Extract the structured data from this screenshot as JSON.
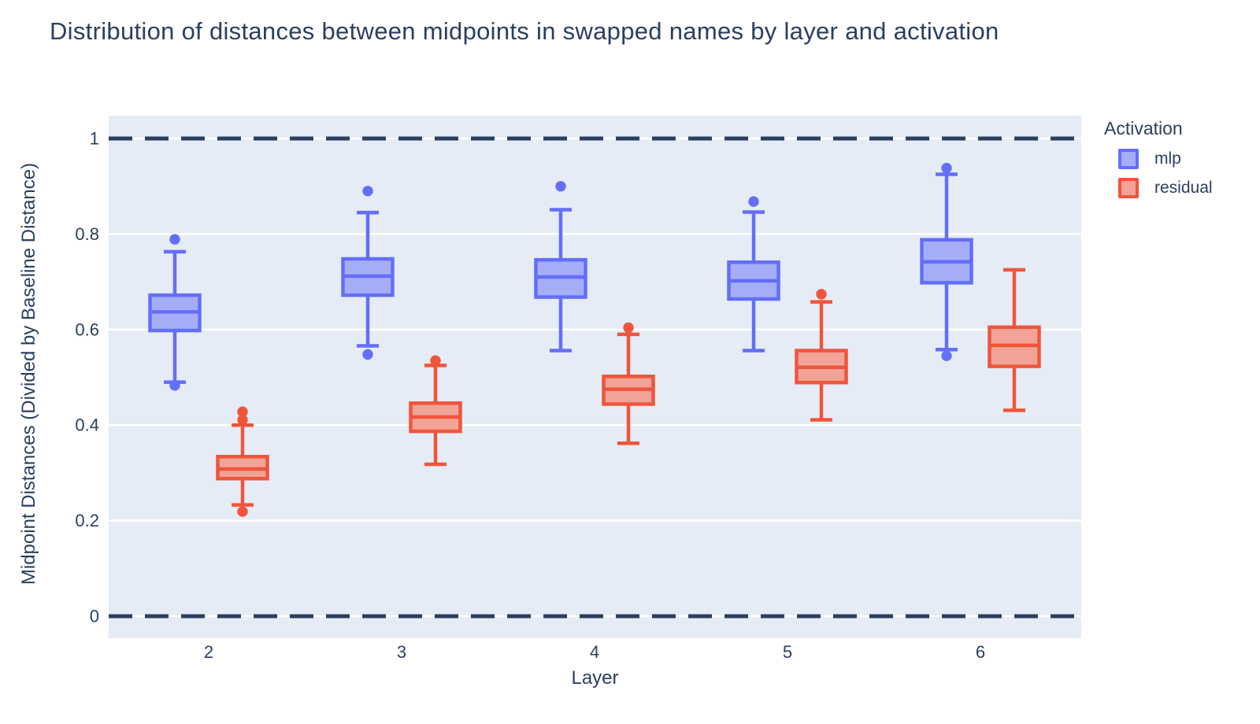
{
  "title": "Distribution of distances between midpoints in swapped names by layer and activation",
  "colors": {
    "mlp_line": "#636EFA",
    "mlp_fill": "#A5ADF7",
    "residual_line": "#EF553B",
    "residual_fill": "#F0A396",
    "plot_background": "#E5ECF6",
    "gridline": "#FFFFFF",
    "reference_line": "#2A3F5F",
    "text": "#2A3F5F"
  },
  "legend": {
    "title": "Activation",
    "items": [
      {
        "label": "mlp",
        "line": "#636EFA",
        "fill": "#A5ADF7"
      },
      {
        "label": "residual",
        "line": "#EF553B",
        "fill": "#F0A396"
      }
    ]
  },
  "chart_data": {
    "type": "box",
    "title": "Distribution of distances between midpoints in swapped names by layer and activation",
    "xlabel": "Layer",
    "ylabel": "Midpoint Distances (Divided by Baseline Distance)",
    "categories": [
      "2",
      "3",
      "4",
      "5",
      "6"
    ],
    "yticks": [
      0,
      0.2,
      0.4,
      0.6,
      0.8,
      1
    ],
    "ytick_labels": [
      "0",
      "0.2",
      "0.4",
      "0.6",
      "0.8",
      "1"
    ],
    "ylim": [
      -0.046,
      1.048
    ],
    "grid": true,
    "legend_position": "right",
    "reference_lines": [
      0,
      1
    ],
    "series": [
      {
        "name": "mlp",
        "line_color": "#636EFA",
        "fill_color": "#A5ADF7",
        "boxes": [
          {
            "category": "2",
            "whisker_low": 0.49,
            "q1": 0.598,
            "median": 0.637,
            "q3": 0.672,
            "whisker_high": 0.763,
            "outliers_high": [
              0.789
            ],
            "outliers_low": [
              0.483
            ]
          },
          {
            "category": "3",
            "whisker_low": 0.566,
            "q1": 0.672,
            "median": 0.712,
            "q3": 0.748,
            "whisker_high": 0.845,
            "outliers_high": [
              0.89
            ],
            "outliers_low": [
              0.548
            ]
          },
          {
            "category": "4",
            "whisker_low": 0.556,
            "q1": 0.668,
            "median": 0.71,
            "q3": 0.746,
            "whisker_high": 0.851,
            "outliers_high": [
              0.9
            ],
            "outliers_low": []
          },
          {
            "category": "5",
            "whisker_low": 0.556,
            "q1": 0.664,
            "median": 0.702,
            "q3": 0.741,
            "whisker_high": 0.846,
            "outliers_high": [
              0.868
            ],
            "outliers_low": []
          },
          {
            "category": "6",
            "whisker_low": 0.558,
            "q1": 0.698,
            "median": 0.742,
            "q3": 0.788,
            "whisker_high": 0.925,
            "outliers_high": [
              0.938
            ],
            "outliers_low": [
              0.545
            ]
          }
        ]
      },
      {
        "name": "residual",
        "line_color": "#EF553B",
        "fill_color": "#F0A396",
        "boxes": [
          {
            "category": "2",
            "whisker_low": 0.233,
            "q1": 0.288,
            "median": 0.308,
            "q3": 0.334,
            "whisker_high": 0.4,
            "outliers_high": [
              0.428,
              0.411
            ],
            "outliers_low": [
              0.219
            ]
          },
          {
            "category": "3",
            "whisker_low": 0.318,
            "q1": 0.387,
            "median": 0.417,
            "q3": 0.446,
            "whisker_high": 0.525,
            "outliers_high": [
              0.535
            ],
            "outliers_low": []
          },
          {
            "category": "4",
            "whisker_low": 0.362,
            "q1": 0.444,
            "median": 0.475,
            "q3": 0.502,
            "whisker_high": 0.59,
            "outliers_high": [
              0.604
            ],
            "outliers_low": []
          },
          {
            "category": "5",
            "whisker_low": 0.411,
            "q1": 0.489,
            "median": 0.521,
            "q3": 0.556,
            "whisker_high": 0.658,
            "outliers_high": [
              0.674
            ],
            "outliers_low": []
          },
          {
            "category": "6",
            "whisker_low": 0.431,
            "q1": 0.523,
            "median": 0.567,
            "q3": 0.605,
            "whisker_high": 0.725,
            "outliers_high": [],
            "outliers_low": []
          }
        ]
      }
    ]
  }
}
